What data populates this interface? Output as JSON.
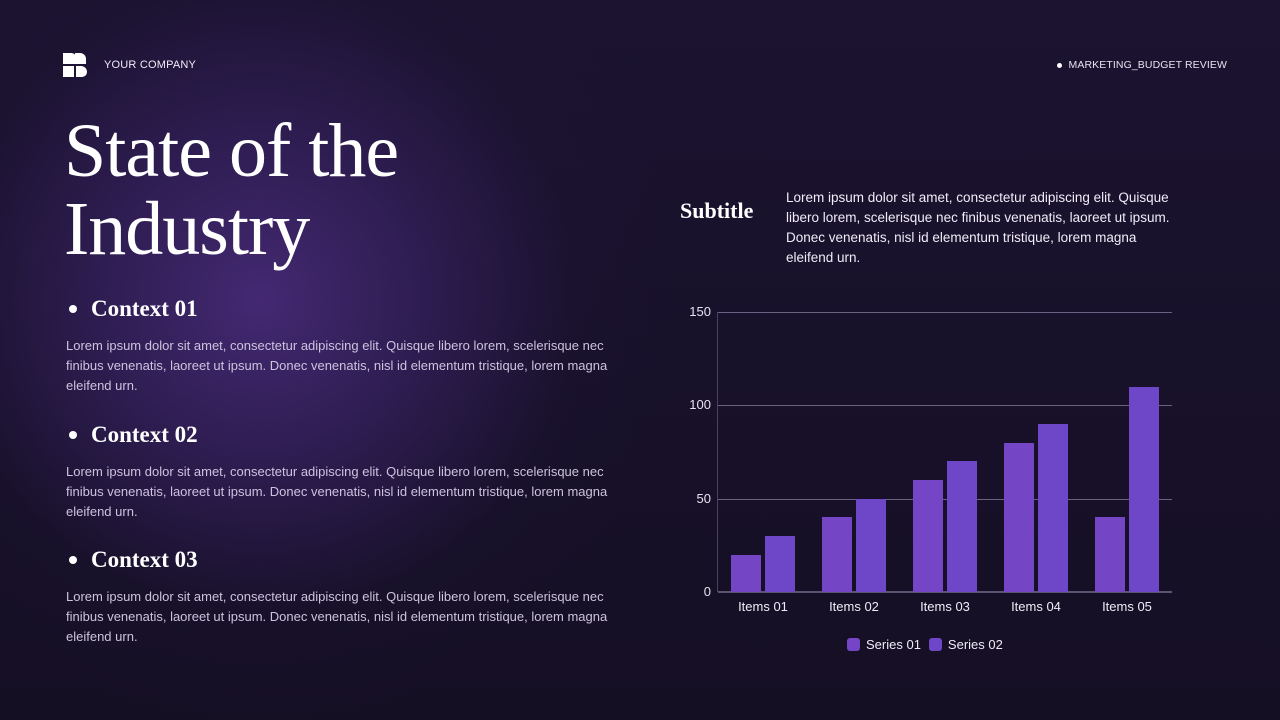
{
  "header": {
    "company": "YOUR COMPANY",
    "tag": "MARKETING_BUDGET REVIEW"
  },
  "title": {
    "line1": "State of the",
    "line2": "Industry"
  },
  "contexts": [
    {
      "heading": "Context 01",
      "body": "Lorem ipsum dolor sit amet, consectetur adipiscing elit. Quisque libero lorem, scelerisque nec finibus venenatis, laoreet ut ipsum. Donec venenatis, nisl id elementum tristique, lorem magna eleifend urn."
    },
    {
      "heading": "Context 02",
      "body": "Lorem ipsum dolor sit amet, consectetur adipiscing elit. Quisque libero lorem, scelerisque nec finibus venenatis, laoreet ut ipsum. Donec venenatis, nisl id elementum tristique, lorem magna eleifend urn."
    },
    {
      "heading": "Context 03",
      "body": "Lorem ipsum dolor sit amet, consectetur adipiscing elit. Quisque libero lorem, scelerisque nec finibus venenatis, laoreet ut ipsum. Donec venenatis, nisl id elementum tristique, lorem magna eleifend urn."
    }
  ],
  "subtitle": {
    "label": "Subtitle",
    "body": "Lorem ipsum dolor sit amet, consectetur adipiscing elit. Quisque libero lorem, scelerisque nec finibus venenatis, laoreet ut ipsum. Donec venenatis, nisl id elementum tristique, lorem magna eleifend urn."
  },
  "colors": {
    "background": "#150f24",
    "glow": "#3d2870",
    "series01": "#7446c6",
    "series02": "#6e47c8",
    "gridline": "#6b6180"
  },
  "chart_data": {
    "type": "bar",
    "title": "",
    "xlabel": "",
    "ylabel": "",
    "categories": [
      "Items 01",
      "Items 02",
      "Items 03",
      "Items 04",
      "Items 05"
    ],
    "series": [
      {
        "name": "Series 01",
        "values": [
          20,
          40,
          60,
          80,
          40
        ]
      },
      {
        "name": "Series 02",
        "values": [
          30,
          50,
          70,
          90,
          110
        ]
      }
    ],
    "ylim": [
      0,
      150
    ],
    "yticks": [
      0,
      50,
      100,
      150
    ],
    "ytick_labels": [
      "0",
      "50",
      "100",
      "150"
    ],
    "grid": true,
    "legend_position": "bottom"
  }
}
